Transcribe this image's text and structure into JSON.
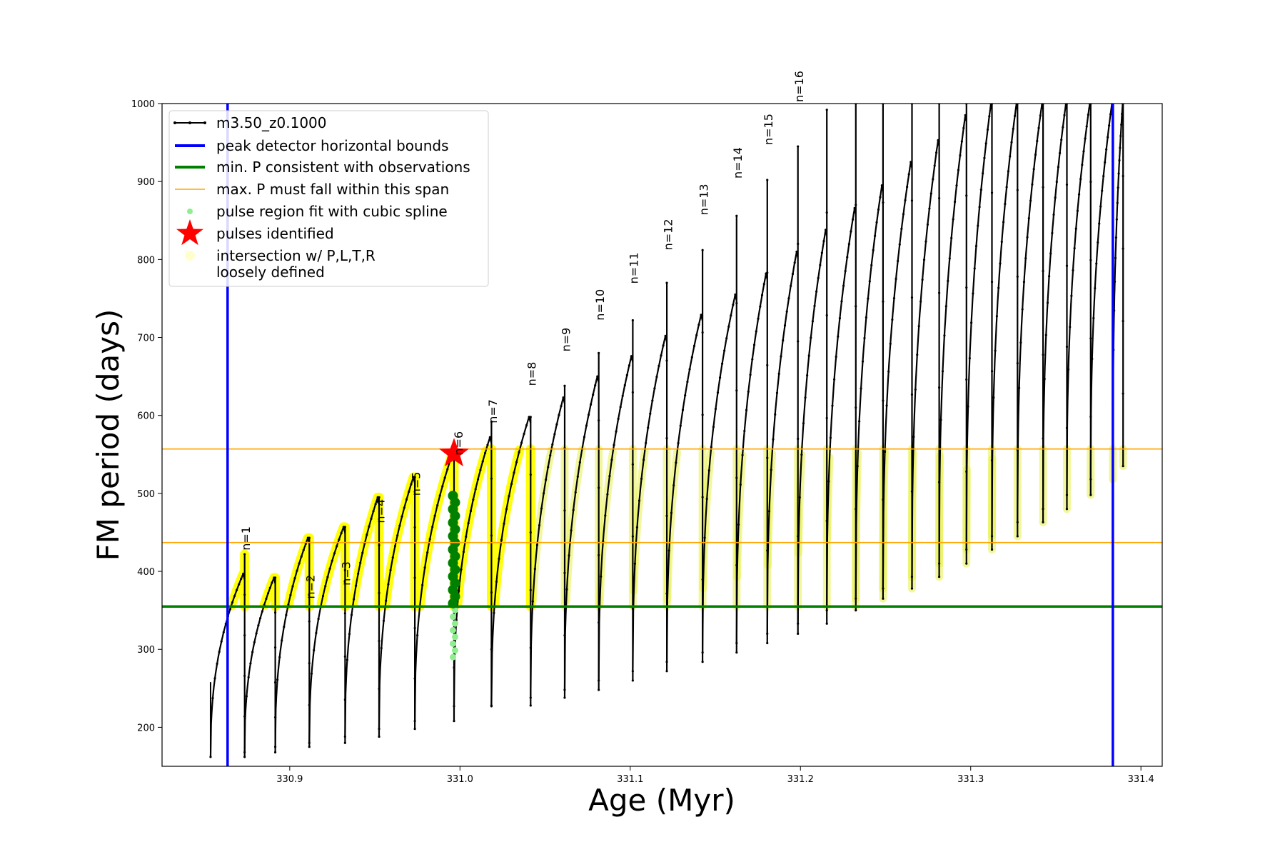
{
  "chart_data": {
    "type": "line",
    "xlabel": "Age (Myr)",
    "ylabel": "FM period (days)",
    "xlim": [
      330.825,
      331.4125
    ],
    "ylim": [
      150,
      1000
    ],
    "xticks": [
      330.9,
      331.0,
      331.1,
      331.2,
      331.3,
      331.4
    ],
    "xtick_labels": [
      "330.9",
      "331.0",
      "331.1",
      "331.2",
      "331.3",
      "331.4"
    ],
    "yticks": [
      200,
      300,
      400,
      500,
      600,
      700,
      800,
      900,
      1000
    ],
    "ytick_labels": [
      "200",
      "300",
      "400",
      "500",
      "600",
      "700",
      "800",
      "900",
      "1000"
    ],
    "grid": false,
    "legend": {
      "position": "upper left",
      "entries": [
        {
          "label": "m3.50_z0.1000",
          "color": "#000000",
          "marker": "line-dot"
        },
        {
          "label": "peak detector horizontal bounds",
          "color": "#0000ff",
          "marker": "thick-line"
        },
        {
          "label": "min. P consistent with observations",
          "color": "#008000",
          "marker": "thick-line"
        },
        {
          "label": "max. P must fall within this span",
          "color": "#ffa500",
          "marker": "thin-line"
        },
        {
          "label": "pulse region fit with cubic spline",
          "color": "#90ee90",
          "marker": "dot"
        },
        {
          "label": "pulses identified",
          "color": "#ff0000",
          "marker": "star"
        },
        {
          "label": "intersection w/ P,L,T,R",
          "label2": "loosely defined",
          "color": "#ffffcc",
          "marker": "dot"
        }
      ]
    },
    "vertical_bounds": {
      "color": "#0000ff",
      "x": [
        330.8635,
        331.3835
      ]
    },
    "min_period": {
      "color": "#008000",
      "y": 355
    },
    "max_period_span": {
      "color": "#ffa500",
      "y": [
        437,
        557
      ]
    },
    "pulse_cycles": [
      {
        "start": 330.8535,
        "end": 330.8735,
        "min": 162,
        "max": 397,
        "spike": 422
      },
      {
        "start": 330.8735,
        "end": 330.8915,
        "min": 168,
        "max": 392,
        "spike": 392
      },
      {
        "start": 330.8915,
        "end": 330.9115,
        "min": 175,
        "max": 443,
        "spike": 443
      },
      {
        "start": 330.9115,
        "end": 330.9325,
        "min": 180,
        "max": 457,
        "spike": 457
      },
      {
        "start": 330.9325,
        "end": 330.9525,
        "min": 188,
        "max": 495,
        "spike": 495
      },
      {
        "start": 330.9525,
        "end": 330.9735,
        "min": 198,
        "max": 521,
        "spike": 521
      },
      {
        "start": 330.9735,
        "end": 330.9965,
        "min": 208,
        "max": 551,
        "spike": 551
      },
      {
        "start": 330.9965,
        "end": 331.0185,
        "min": 227,
        "max": 572,
        "spike": 592
      },
      {
        "start": 331.0185,
        "end": 331.0415,
        "min": 228,
        "max": 598,
        "spike": 598
      },
      {
        "start": 331.0415,
        "end": 331.0615,
        "min": 238,
        "max": 623,
        "spike": 638
      },
      {
        "start": 331.0615,
        "end": 331.0815,
        "min": 248,
        "max": 650,
        "spike": 680
      },
      {
        "start": 331.0815,
        "end": 331.1015,
        "min": 260,
        "max": 676,
        "spike": 722
      },
      {
        "start": 331.1015,
        "end": 331.1215,
        "min": 272,
        "max": 702,
        "spike": 770
      },
      {
        "start": 331.1215,
        "end": 331.1425,
        "min": 284,
        "max": 729,
        "spike": 812
      },
      {
        "start": 331.1425,
        "end": 331.1625,
        "min": 296,
        "max": 755,
        "spike": 856
      },
      {
        "start": 331.1625,
        "end": 331.1805,
        "min": 308,
        "max": 782,
        "spike": 902
      },
      {
        "start": 331.1805,
        "end": 331.1985,
        "min": 320,
        "max": 810,
        "spike": 945
      },
      {
        "start": 331.1985,
        "end": 331.2155,
        "min": 333,
        "max": 838,
        "spike": 992
      },
      {
        "start": 331.2155,
        "end": 331.2325,
        "min": 350,
        "max": 866,
        "spike": 1000
      },
      {
        "start": 331.2325,
        "end": 331.2485,
        "min": 365,
        "max": 895,
        "spike": 1000
      },
      {
        "start": 331.2485,
        "end": 331.2655,
        "min": 378,
        "max": 925,
        "spike": 1000
      },
      {
        "start": 331.2655,
        "end": 331.2815,
        "min": 393,
        "max": 953,
        "spike": 1000
      },
      {
        "start": 331.2815,
        "end": 331.2975,
        "min": 410,
        "max": 985,
        "spike": 1000
      },
      {
        "start": 331.2975,
        "end": 331.3125,
        "min": 428,
        "max": 1000,
        "spike": 1000
      },
      {
        "start": 331.3125,
        "end": 331.3275,
        "min": 445,
        "max": 1000,
        "spike": 1000
      },
      {
        "start": 331.3275,
        "end": 331.3425,
        "min": 463,
        "max": 1000,
        "spike": 1000
      },
      {
        "start": 331.3425,
        "end": 331.3565,
        "min": 480,
        "max": 1000,
        "spike": 1000
      },
      {
        "start": 331.3565,
        "end": 331.3705,
        "min": 498,
        "max": 1000,
        "spike": 1000
      },
      {
        "start": 331.3705,
        "end": 331.3835,
        "min": 518,
        "max": 1000,
        "spike": 1000
      },
      {
        "start": 331.3835,
        "end": 331.3895,
        "min": 535,
        "max": 1000,
        "spike": 1000
      }
    ],
    "pulse_labels": [
      {
        "text": "n=1",
        "x": 330.8745,
        "y": 425
      },
      {
        "text": "n=2",
        "x": 330.9125,
        "y": 363
      },
      {
        "text": "n=3",
        "x": 330.9335,
        "y": 380
      },
      {
        "text": "n=4",
        "x": 330.9535,
        "y": 460
      },
      {
        "text": "n=5",
        "x": 330.9745,
        "y": 495
      },
      {
        "text": "n=6",
        "x": 330.9995,
        "y": 547
      },
      {
        "text": "n=7",
        "x": 331.0195,
        "y": 588
      },
      {
        "text": "n=8",
        "x": 331.0425,
        "y": 636
      },
      {
        "text": "n=9",
        "x": 331.0625,
        "y": 680
      },
      {
        "text": "n=10",
        "x": 331.0825,
        "y": 720
      },
      {
        "text": "n=11",
        "x": 331.1025,
        "y": 767
      },
      {
        "text": "n=12",
        "x": 331.1225,
        "y": 810
      },
      {
        "text": "n=13",
        "x": 331.1435,
        "y": 855
      },
      {
        "text": "n=14",
        "x": 331.1635,
        "y": 902
      },
      {
        "text": "n=15",
        "x": 331.1815,
        "y": 945
      },
      {
        "text": "n=16",
        "x": 331.1995,
        "y": 1000
      }
    ],
    "cubic_spline_region": {
      "x": 330.9965,
      "y_range": [
        290,
        497
      ]
    },
    "identified_pulse": {
      "x": 330.9965,
      "y": 551
    }
  }
}
